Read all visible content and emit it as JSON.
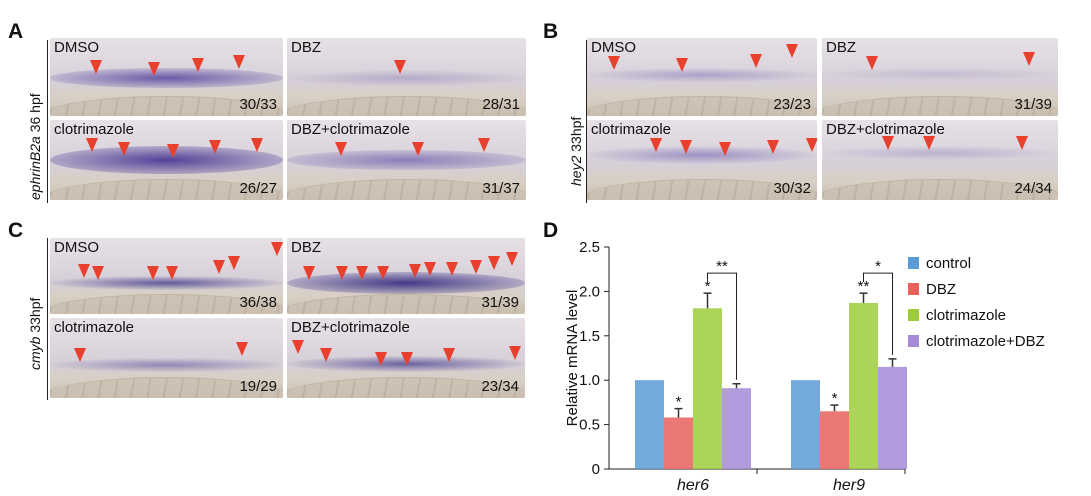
{
  "panels": {
    "A": {
      "letter": "A",
      "ylabel_gene": "ephrinB2a",
      "ylabel_rest": " 36 hpf",
      "images": [
        {
          "condition": "DMSO",
          "count": "30/33"
        },
        {
          "condition": "DBZ",
          "count": "28/31"
        },
        {
          "condition": "clotrimazole",
          "count": "26/27"
        },
        {
          "condition": "DBZ+clotrimazole",
          "count": "31/37"
        }
      ]
    },
    "B": {
      "letter": "B",
      "ylabel_gene": "hey2",
      "ylabel_rest": " 33hpf",
      "images": [
        {
          "condition": "DMSO",
          "count": "23/23"
        },
        {
          "condition": "DBZ",
          "count": "31/39"
        },
        {
          "condition": "clotrimazole",
          "count": "30/32"
        },
        {
          "condition": "DBZ+clotrimazole",
          "count": "24/34"
        }
      ]
    },
    "C": {
      "letter": "C",
      "ylabel_gene": "cmyb",
      "ylabel_rest": " 33hpf",
      "images": [
        {
          "condition": "DMSO",
          "count": "36/38"
        },
        {
          "condition": "DBZ",
          "count": "31/39"
        },
        {
          "condition": "clotrimazole",
          "count": "19/29"
        },
        {
          "condition": "DBZ+clotrimazole",
          "count": "23/34"
        }
      ]
    },
    "D": {
      "letter": "D"
    }
  },
  "chart_data": {
    "type": "bar",
    "categories": [
      "her6",
      "her9"
    ],
    "ylabel": "Relative mRNA level",
    "ylim": [
      0,
      2.5
    ],
    "yticks": [
      "0",
      "0.5",
      "1.0",
      "1.5",
      "2.0",
      "2.5"
    ],
    "series": [
      {
        "name": "control",
        "color": "#5b9bd5",
        "values": [
          1.0,
          1.0
        ],
        "errors": [
          0,
          0
        ],
        "marks": [
          "",
          ""
        ]
      },
      {
        "name": "DBZ",
        "color": "#e8615a",
        "values": [
          0.58,
          0.65
        ],
        "errors": [
          0.1,
          0.07
        ],
        "marks": [
          "*",
          "*"
        ]
      },
      {
        "name": "clotrimazole",
        "color": "#9ccc3c",
        "values": [
          1.81,
          1.87
        ],
        "errors": [
          0.17,
          0.11
        ],
        "marks": [
          "*",
          "**"
        ]
      },
      {
        "name": "clotrimazole+DBZ",
        "color": "#a58ad6",
        "values": [
          0.91,
          1.15
        ],
        "errors": [
          0.05,
          0.09
        ],
        "marks": [
          "",
          ""
        ]
      }
    ],
    "brackets": [
      {
        "category": "her6",
        "label": "**"
      },
      {
        "category": "her9",
        "label": "*"
      }
    ],
    "legend_position": "right"
  }
}
